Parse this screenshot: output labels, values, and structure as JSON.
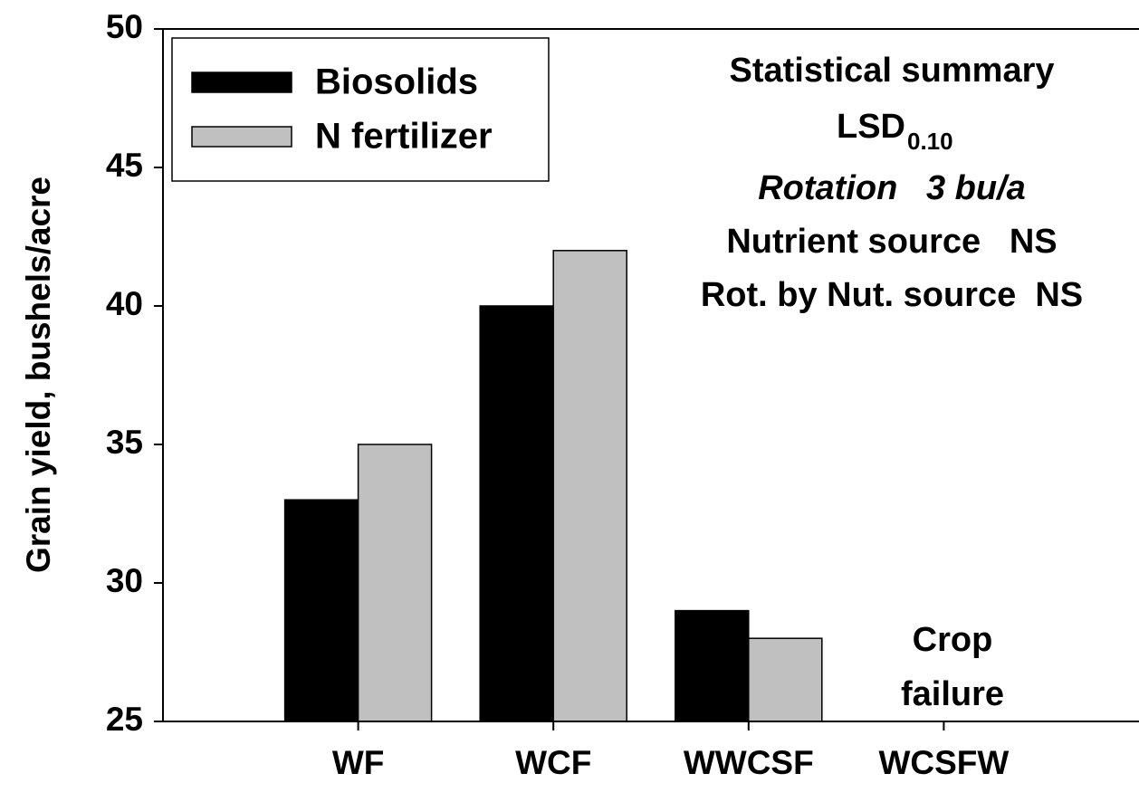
{
  "chart_data": {
    "type": "bar",
    "y_label": "Grain yield, bushels/acre",
    "categories": [
      "WF",
      "WCF",
      "WWCSF",
      "WCSFW"
    ],
    "series": [
      {
        "name": "Biosolids",
        "color": "#000000",
        "values": [
          33,
          40,
          29,
          null
        ]
      },
      {
        "name": "N fertilizer",
        "color": "#c0c0c0",
        "values": [
          35,
          42,
          28,
          null
        ]
      }
    ],
    "ylim": [
      25,
      50
    ],
    "yticks": [
      25,
      30,
      35,
      40,
      45,
      50
    ],
    "legend": "upper left",
    "summary": {
      "title": "Statistical summary",
      "lsd": {
        "text": "LSD",
        "sub": "0.10"
      },
      "rotation": "Rotation   3 bu/a",
      "nutrient": "Nutrient source   NS",
      "interaction": "Rot. by Nut. source  NS"
    },
    "crop_failure": [
      "Crop",
      "failure"
    ]
  }
}
